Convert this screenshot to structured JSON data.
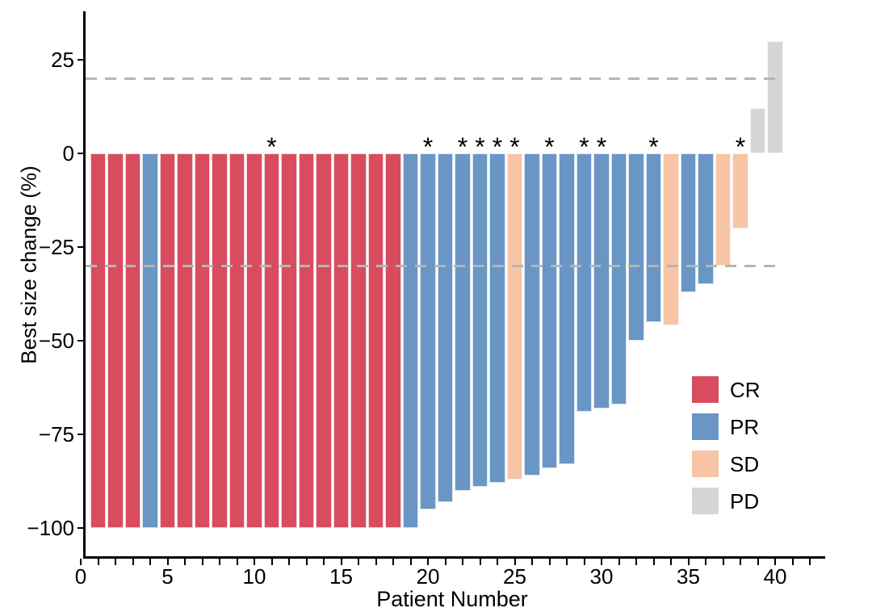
{
  "chart_data": {
    "type": "bar",
    "title": "",
    "xlabel": "Patient Number",
    "ylabel": "Best size change (%)",
    "xlim": [
      0,
      43
    ],
    "ylim": [
      -105,
      33
    ],
    "x_major_ticks": [
      0,
      5,
      10,
      15,
      20,
      25,
      30,
      35,
      40
    ],
    "x_minor_tick_every": 1,
    "y_ticks": [
      25,
      0,
      -25,
      -50,
      -75,
      -100
    ],
    "grid": "off",
    "reference_lines": [
      {
        "y": 20,
        "style": "dashed",
        "color": "#b5b5b5"
      },
      {
        "y": -30,
        "style": "dashed",
        "color": "#b5b5b5"
      }
    ],
    "annotation_marker": "*",
    "legend": {
      "position": "inside-right",
      "entries": [
        {
          "label": "CR",
          "color": "#d84c60"
        },
        {
          "label": "PR",
          "color": "#6996c5"
        },
        {
          "label": "SD",
          "color": "#f7c4a5"
        },
        {
          "label": "PD",
          "color": "#d6d6d6"
        }
      ]
    },
    "points": [
      {
        "patient": 1,
        "value": -100,
        "response": "CR",
        "star": false
      },
      {
        "patient": 2,
        "value": -100,
        "response": "CR",
        "star": false
      },
      {
        "patient": 3,
        "value": -100,
        "response": "CR",
        "star": false
      },
      {
        "patient": 4,
        "value": -100,
        "response": "PR",
        "star": false
      },
      {
        "patient": 5,
        "value": -100,
        "response": "CR",
        "star": false
      },
      {
        "patient": 6,
        "value": -100,
        "response": "CR",
        "star": false
      },
      {
        "patient": 7,
        "value": -100,
        "response": "CR",
        "star": false
      },
      {
        "patient": 8,
        "value": -100,
        "response": "CR",
        "star": false
      },
      {
        "patient": 9,
        "value": -100,
        "response": "CR",
        "star": false
      },
      {
        "patient": 10,
        "value": -100,
        "response": "CR",
        "star": false
      },
      {
        "patient": 11,
        "value": -100,
        "response": "CR",
        "star": true
      },
      {
        "patient": 12,
        "value": -100,
        "response": "CR",
        "star": false
      },
      {
        "patient": 13,
        "value": -100,
        "response": "CR",
        "star": false
      },
      {
        "patient": 14,
        "value": -100,
        "response": "CR",
        "star": false
      },
      {
        "patient": 15,
        "value": -100,
        "response": "CR",
        "star": false
      },
      {
        "patient": 16,
        "value": -100,
        "response": "CR",
        "star": false
      },
      {
        "patient": 17,
        "value": -100,
        "response": "CR",
        "star": false
      },
      {
        "patient": 18,
        "value": -100,
        "response": "CR",
        "star": false
      },
      {
        "patient": 19,
        "value": -100,
        "response": "PR",
        "star": false
      },
      {
        "patient": 20,
        "value": -95,
        "response": "PR",
        "star": true
      },
      {
        "patient": 21,
        "value": -93,
        "response": "PR",
        "star": false
      },
      {
        "patient": 22,
        "value": -90,
        "response": "PR",
        "star": true
      },
      {
        "patient": 23,
        "value": -89,
        "response": "PR",
        "star": true
      },
      {
        "patient": 24,
        "value": -88,
        "response": "PR",
        "star": true
      },
      {
        "patient": 25,
        "value": -87,
        "response": "SD",
        "star": true
      },
      {
        "patient": 26,
        "value": -86,
        "response": "PR",
        "star": false
      },
      {
        "patient": 27,
        "value": -84,
        "response": "PR",
        "star": true
      },
      {
        "patient": 28,
        "value": -83,
        "response": "PR",
        "star": false
      },
      {
        "patient": 29,
        "value": -69,
        "response": "PR",
        "star": true
      },
      {
        "patient": 30,
        "value": -68,
        "response": "PR",
        "star": true
      },
      {
        "patient": 31,
        "value": -67,
        "response": "PR",
        "star": false
      },
      {
        "patient": 32,
        "value": -50,
        "response": "PR",
        "star": false
      },
      {
        "patient": 33,
        "value": -45,
        "response": "PR",
        "star": true
      },
      {
        "patient": 34,
        "value": -46,
        "response": "SD",
        "star": false
      },
      {
        "patient": 35,
        "value": -37,
        "response": "PR",
        "star": false
      },
      {
        "patient": 36,
        "value": -35,
        "response": "PR",
        "star": false
      },
      {
        "patient": 37,
        "value": -30,
        "response": "SD",
        "star": false
      },
      {
        "patient": 38,
        "value": -20,
        "response": "SD",
        "star": true
      },
      {
        "patient": 39,
        "value": 12,
        "response": "PD",
        "star": false
      },
      {
        "patient": 40,
        "value": 30,
        "response": "PD",
        "star": false
      }
    ]
  },
  "colors": {
    "CR": "#d84c60",
    "PR": "#6996c5",
    "SD": "#f7c4a5",
    "PD": "#d6d6d6",
    "reference_line": "#b5b5b5",
    "axis": "#000000",
    "background": "#ffffff"
  }
}
